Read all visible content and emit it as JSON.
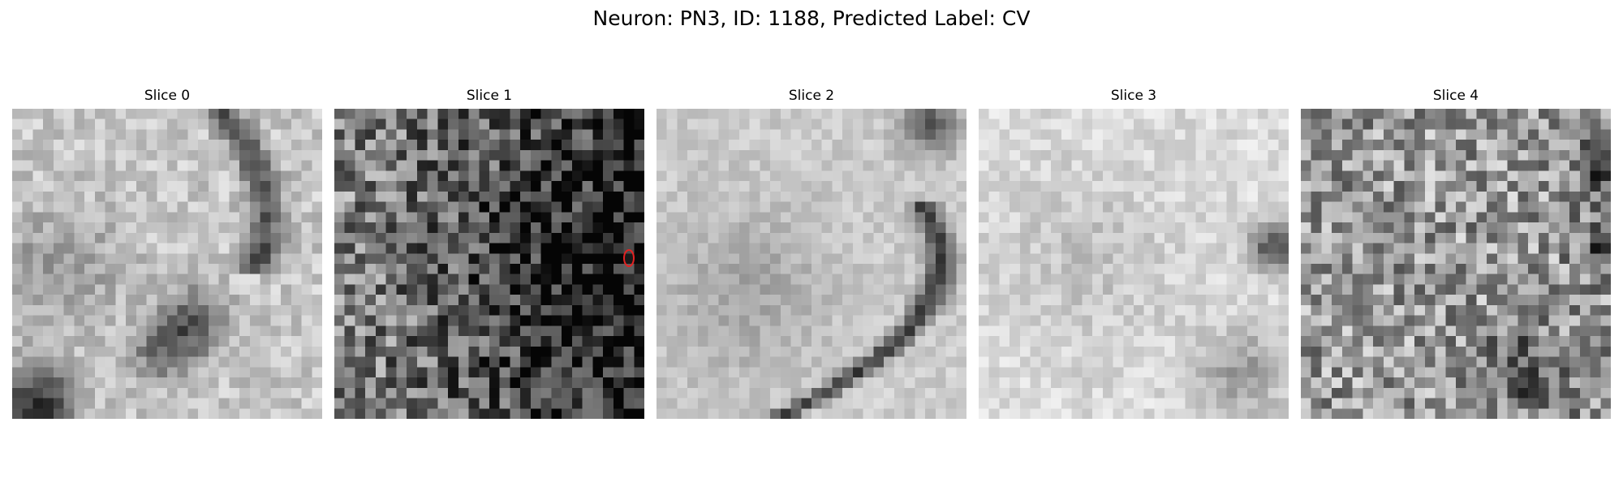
{
  "figure": {
    "title": "Neuron: PN3, ID: 1188, Predicted Label: CV"
  },
  "panels": [
    {
      "title": "Slice 0",
      "seed": 11,
      "noise": 0.055
    },
    {
      "title": "Slice 1",
      "seed": 23,
      "noise": 0.14
    },
    {
      "title": "Slice 2",
      "seed": 37,
      "noise": 0.035
    },
    {
      "title": "Slice 3",
      "seed": 41,
      "noise": 0.04
    },
    {
      "title": "Slice 4",
      "seed": 53,
      "noise": 0.13
    }
  ],
  "colormap": "gray",
  "marker": {
    "panel": 1,
    "color": "#e32222",
    "shape": "ellipse"
  }
}
